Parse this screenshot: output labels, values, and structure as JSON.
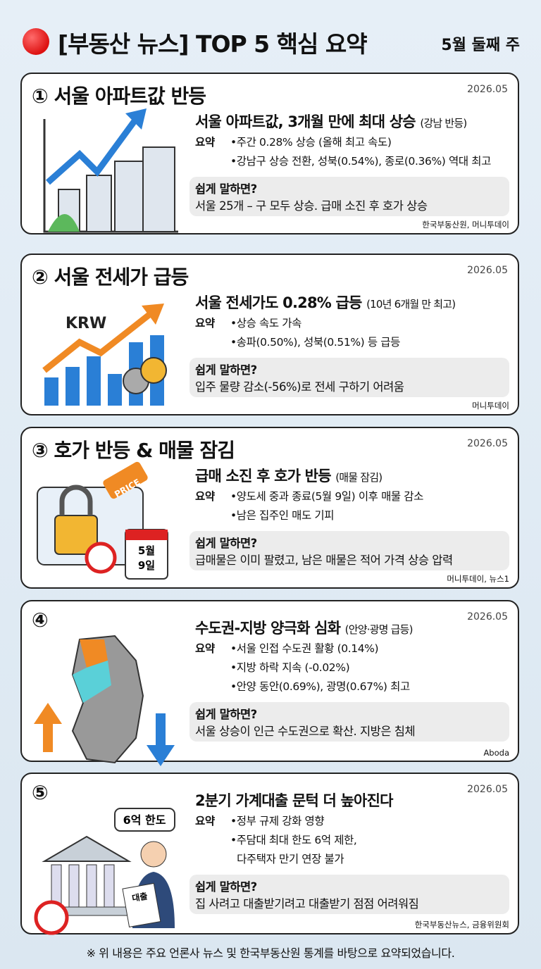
{
  "header": {
    "title": "[부동산 뉴스] TOP 5 핵심 요약",
    "week": "5월 둘째 주"
  },
  "cards": [
    {
      "number": "①",
      "heading": "서울 아파트값 반등",
      "date": "2026.05",
      "headline": "서울 아파트값, 3개월 만에 최대 상승",
      "headline_note": "(강남 반등)",
      "summary_label": "요약",
      "bullets": [
        [
          "주간 0.28% 상승 (올해 최고 속도)"
        ],
        [
          "강남구 상승 전환, 성북(0.54%), 종로(0.36%) 역대 최고"
        ]
      ],
      "easy_label": "쉽게 말하면?",
      "easy_text": "서울 25개 – 구 모두 상승. 급매 소진 후 호가 상승",
      "source": "한국부동산원, 머니투데이"
    },
    {
      "number": "②",
      "heading": "서울 전세가 급등",
      "date": "2026.05",
      "headline": "서울 전세가도 0.28% 급등",
      "headline_note": "(10년 6개월 만 최고)",
      "summary_label": "요약",
      "bullets": [
        [
          "상승 속도 가속"
        ],
        [
          "송파(0.50%), 성북(0.51%) 등 급등"
        ]
      ],
      "easy_label": "쉽게 말하면?",
      "easy_text": "입주 물량 감소(-56%)로 전세 구하기 어려움",
      "source": "머니투데이",
      "illustration_text": [
        "KRW"
      ]
    },
    {
      "number": "③",
      "heading": "호가 반등 & 매물 잠김",
      "date": "2026.05",
      "headline": "급매 소진 후 호가 반등",
      "headline_note": "(매물 잠김)",
      "summary_label": "요약",
      "bullets": [
        [
          "양도세 중과 종료(5월 9일) 이후 매물 감소"
        ],
        [
          "남은 집주인 매도 기피"
        ]
      ],
      "easy_label": "쉽게 말하면?",
      "easy_text": "급매물은 이미 팔렸고, 남은 매물은 적어 가격 상승 압력",
      "source": "머니투데이, 뉴스1",
      "illustration_text": [
        "PRICE",
        "5월",
        "9일"
      ]
    },
    {
      "number": "④",
      "date": "2026.05",
      "headline": "수도권-지방 양극화 심화",
      "headline_note": "(안양·광명 급등)",
      "summary_label": "요약",
      "bullets": [
        [
          "서울 인접 수도권 활황 (0.14%)"
        ],
        [
          "지방 하락 지속 (-0.02%)"
        ],
        [
          "안양 동안(0.69%), 광명(0.67%) 최고"
        ]
      ],
      "easy_label": "쉽게 말하면?",
      "easy_text": "서울 상승이 인근 수도권으로 확산. 지방은 침체",
      "source": "Aboda"
    },
    {
      "number": "⑤",
      "date": "2026.05",
      "headline": "2분기 가계대출 문턱 더 높아진다",
      "summary_label": "요약",
      "bullets": [
        [
          "정부 규제 강화 영향"
        ],
        [
          "주담대 최대 한도 6억 제한,",
          "다주택자 만기 연장 불가"
        ]
      ],
      "easy_label": "쉽게 말하면?",
      "easy_text": "집 사려고 대출받기려고 대출받기 점점 어려워짐",
      "source": "한국부동산뉴스, 금융위원회",
      "illustration_text": [
        "6억 한도",
        "대출"
      ]
    }
  ],
  "footer": "※ 위 내용은 주요 언론사 뉴스 및 한국부동산원 통계를 바탕으로 요약되었습니다."
}
